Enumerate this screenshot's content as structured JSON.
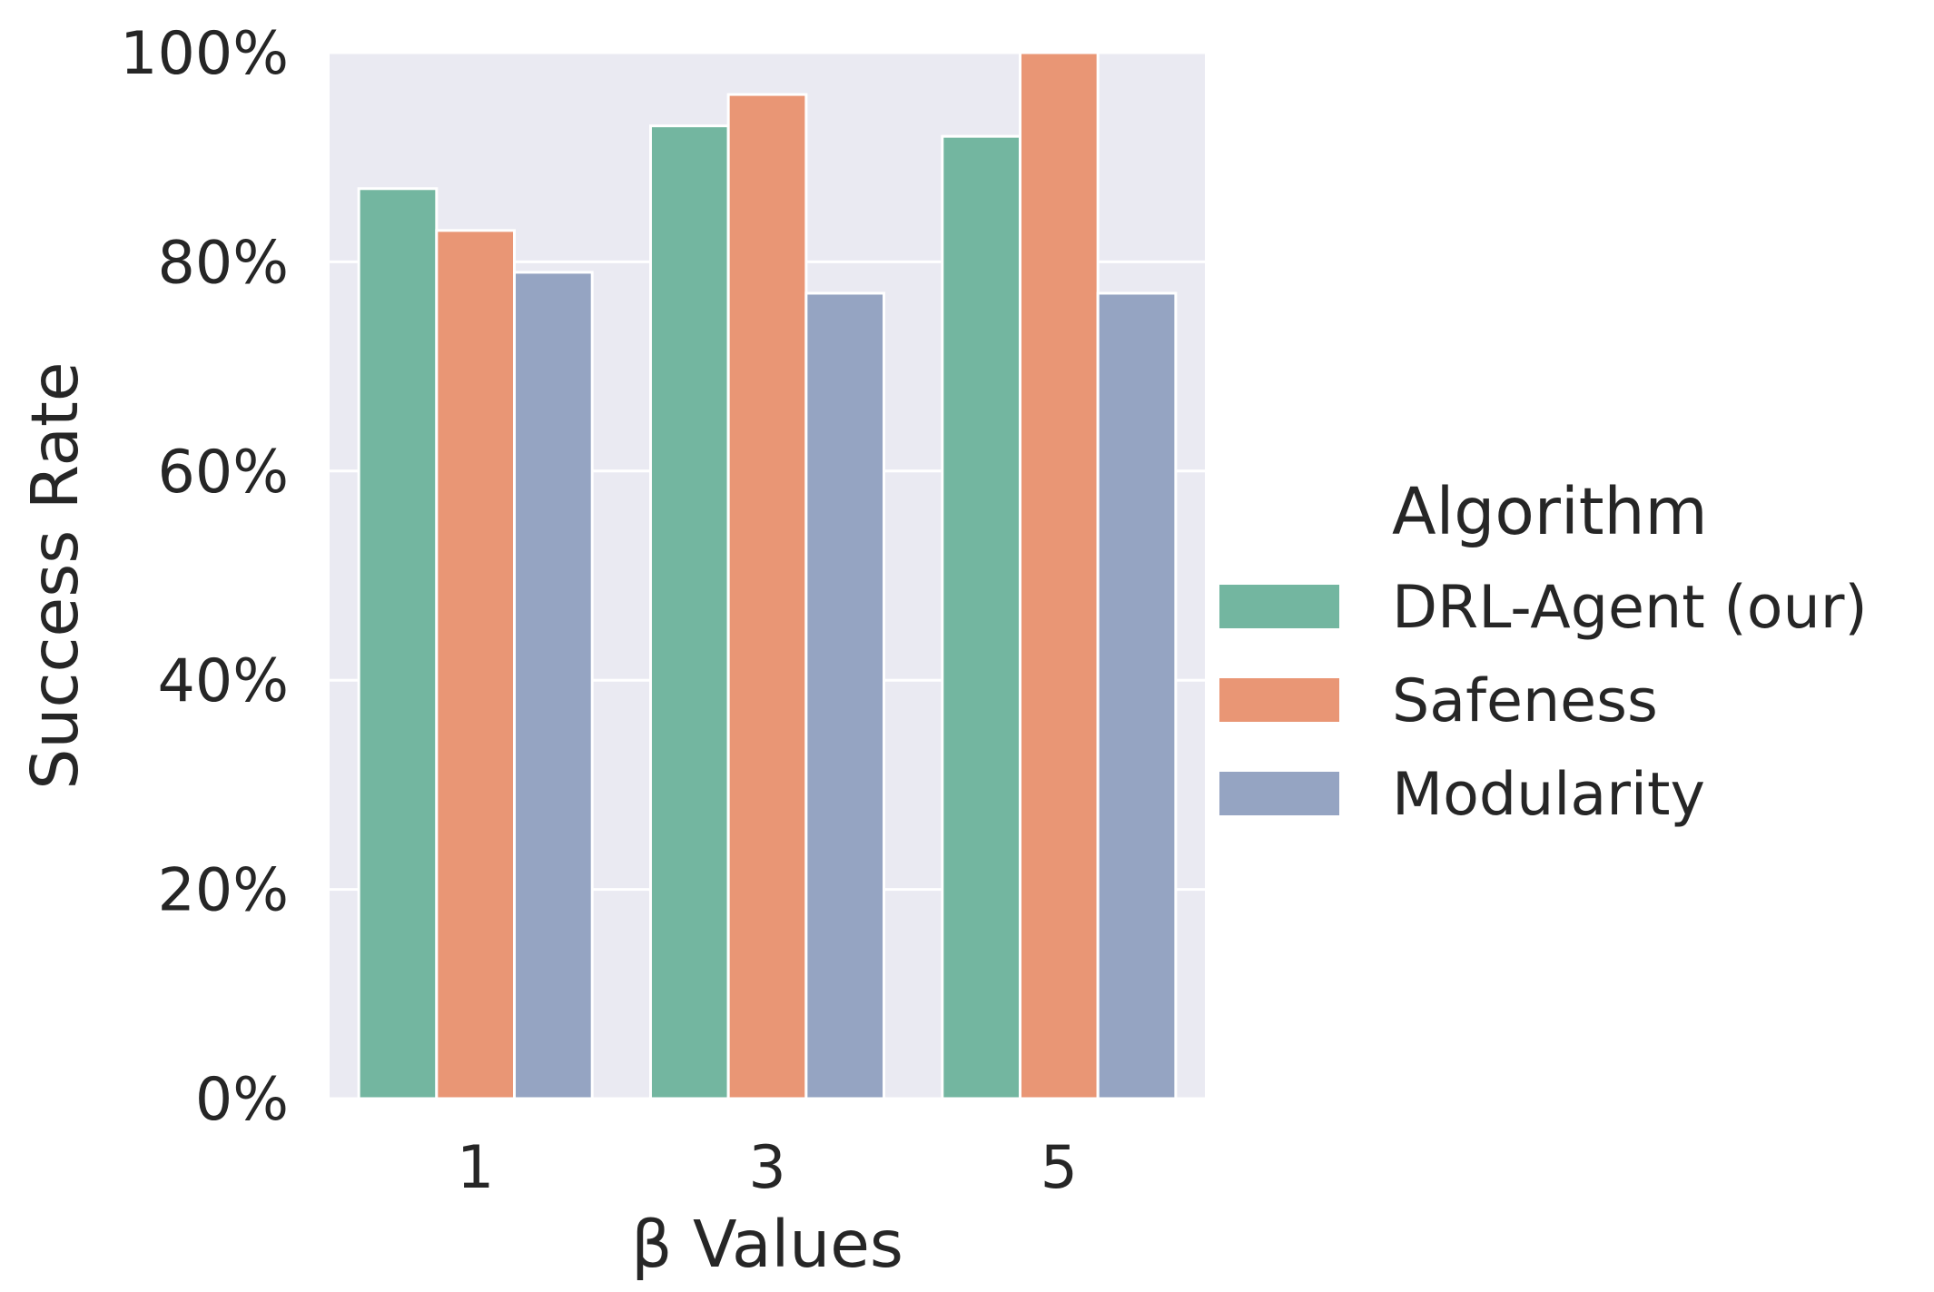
{
  "chart_data": {
    "type": "bar",
    "categories": [
      "1",
      "3",
      "5"
    ],
    "series": [
      {
        "name": "DRL-Agent (our)",
        "values": [
          87,
          93,
          92
        ],
        "color": "#73b6a0"
      },
      {
        "name": "Safeness",
        "values": [
          83,
          96,
          100
        ],
        "color": "#e99675"
      },
      {
        "name": "Modularity",
        "values": [
          79,
          77,
          77
        ],
        "color": "#95a4c2"
      }
    ],
    "xlabel": "β Values",
    "ylabel": "Success Rate",
    "ylim": [
      0,
      100
    ],
    "yticks": [
      "0%",
      "20%",
      "40%",
      "60%",
      "80%",
      "100%"
    ],
    "ytick_values": [
      0,
      20,
      40,
      60,
      80,
      100
    ],
    "legend_title": "Algorithm",
    "legend_position": "right",
    "grid": true,
    "background": "#eaeaf2"
  }
}
